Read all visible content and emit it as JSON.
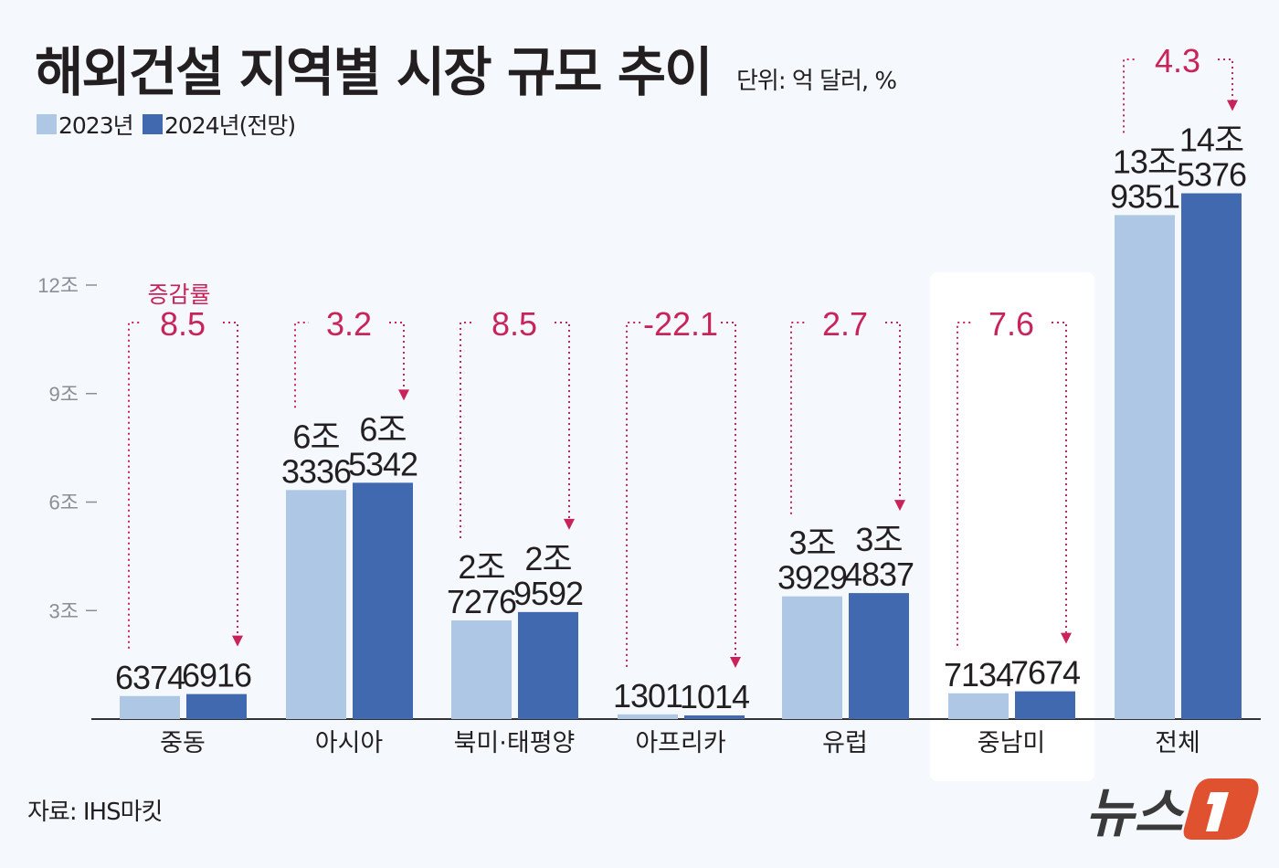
{
  "chart_data": {
    "type": "bar",
    "title": "해외건설 지역별 시장 규모 추이",
    "unit": "단위: 억 달러, %",
    "categories": [
      "중동",
      "아시아",
      "북미·태평양",
      "아프리카",
      "유럽",
      "중남미",
      "전체"
    ],
    "series": [
      {
        "name": "2023년",
        "color": "#adc7e5",
        "values": [
          6374,
          63336,
          27276,
          1301,
          33929,
          7134,
          139351
        ],
        "labels": [
          [
            "6374"
          ],
          [
            "6조",
            "3336"
          ],
          [
            "2조",
            "7276"
          ],
          [
            "1301"
          ],
          [
            "3조",
            "3929"
          ],
          [
            "7134"
          ],
          [
            "13조",
            "9351"
          ]
        ]
      },
      {
        "name": "2024년(전망)",
        "color": "#4169b0",
        "values": [
          6916,
          65342,
          29592,
          1014,
          34837,
          7674,
          145376
        ],
        "labels": [
          [
            "6916"
          ],
          [
            "6조",
            "5342"
          ],
          [
            "2조",
            "9592"
          ],
          [
            "1014"
          ],
          [
            "3조",
            "4837"
          ],
          [
            "7674"
          ],
          [
            "14조",
            "5376"
          ]
        ]
      }
    ],
    "growth_rate_label": "증감률",
    "growth_rates": [
      "8.5",
      "3.2",
      "8.5",
      "-22.1",
      "2.7",
      "7.6",
      "4.3"
    ],
    "growth_color": "#c8245a",
    "highlighted_category": "중남미",
    "yticks": [
      30000,
      60000,
      90000,
      120000
    ],
    "ytick_labels": [
      "3조",
      "6조",
      "9조",
      "12조"
    ],
    "ylim": [
      0,
      150000
    ]
  },
  "source": "자료: IHS마킷",
  "logo": "뉴스1"
}
